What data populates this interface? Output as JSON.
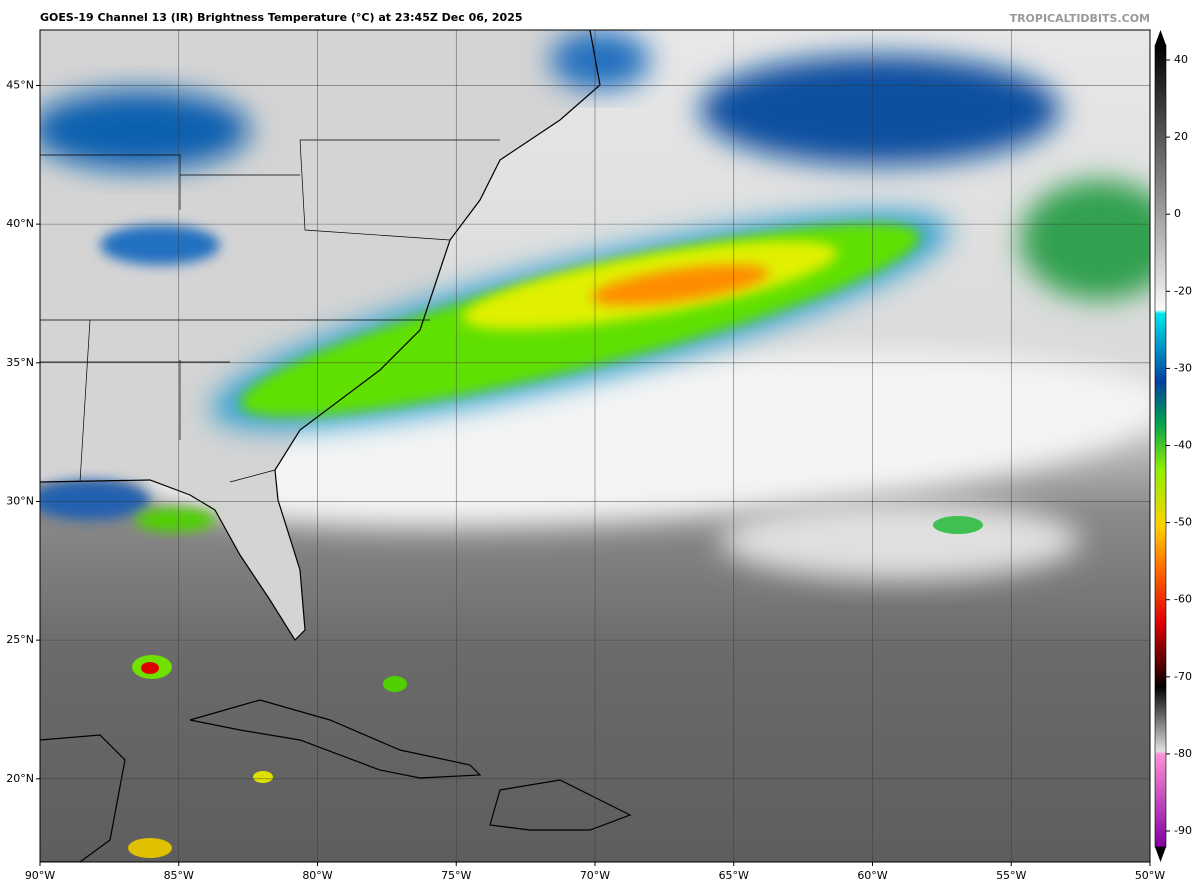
{
  "map": {
    "title": "GOES-19 Channel 13 (IR) Brightness Temperature (°C) at 23:45Z Dec 06, 2025",
    "credit": "TROPICALTIDBITS.COM",
    "lon_lim": [
      -90,
      -50
    ],
    "lat_lim": [
      17,
      47
    ],
    "lon_ticks": [
      {
        "value": -90,
        "label": "90°W"
      },
      {
        "value": -85,
        "label": "85°W"
      },
      {
        "value": -80,
        "label": "80°W"
      },
      {
        "value": -75,
        "label": "75°W"
      },
      {
        "value": -70,
        "label": "70°W"
      },
      {
        "value": -65,
        "label": "65°W"
      },
      {
        "value": -60,
        "label": "60°W"
      },
      {
        "value": -55,
        "label": "55°W"
      },
      {
        "value": -50,
        "label": "50°W"
      }
    ],
    "lat_ticks": [
      {
        "value": 20,
        "label": "20°N"
      },
      {
        "value": 25,
        "label": "25°N"
      },
      {
        "value": 30,
        "label": "30°N"
      },
      {
        "value": 35,
        "label": "35°N"
      },
      {
        "value": 40,
        "label": "40°N"
      },
      {
        "value": 45,
        "label": "45°N"
      }
    ],
    "colorbar_ticks": [
      40,
      20,
      0,
      -20,
      -30,
      -40,
      -50,
      -60,
      -70,
      -80,
      -90
    ]
  }
}
